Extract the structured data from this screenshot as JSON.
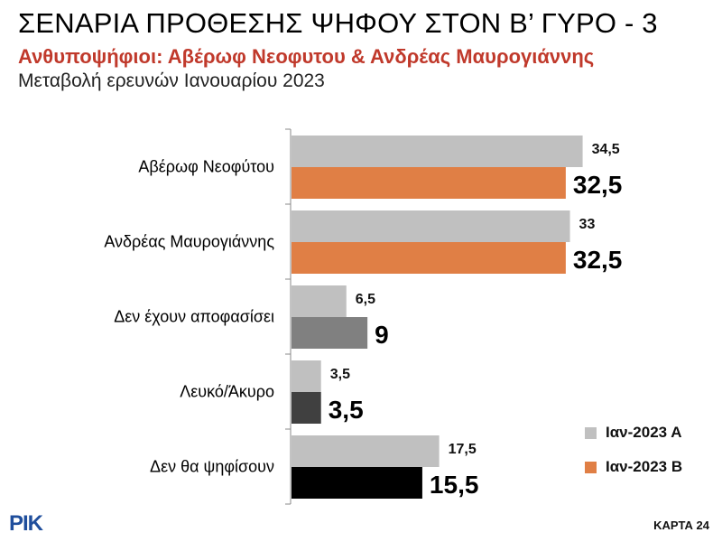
{
  "header": {
    "title": "ΣΕΝΑΡΙΑ ΠΡΟΘΕΣΗΣ ΨΗΦΟΥ ΣΤΟΝ Β’ ΓΥΡΟ - 3",
    "subtitle": "Ανθυποψήφιοι: Αβέρωφ Νεοφυτου & Ανδρέας Μαυρογιάννης",
    "subtitle2": "Μεταβολή ερευνών Ιανουαρίου 2023"
  },
  "colors": {
    "series_a": "#c0c0c0",
    "series_b": "#e07f45",
    "undecided_b": "#808080",
    "blank_b": "#404040",
    "abstain_b": "#000000",
    "subtitle": "#c0392b"
  },
  "chart_data": {
    "type": "bar",
    "orientation": "horizontal",
    "categories": [
      "Αβέρωφ Νεοφύτου",
      "Ανδρέας Μαυρογιάννης",
      "Δεν έχουν αποφασίσει",
      "Λευκό/Άκυρο",
      "Δεν θα ψηφίσουν"
    ],
    "series": [
      {
        "name": "Ιαν-2023 Α",
        "values": [
          34.5,
          33,
          6.5,
          3.5,
          17.5
        ],
        "labels": [
          "34,5",
          "33",
          "6,5",
          "3,5",
          "17,5"
        ]
      },
      {
        "name": "Ιαν-2023 Β",
        "values": [
          32.5,
          32.5,
          9,
          3.5,
          15.5
        ],
        "labels": [
          "32,5",
          "32,5",
          "9",
          "3,5",
          "15,5"
        ]
      }
    ],
    "xlim": [
      0,
      40
    ],
    "legend": "bottom-right",
    "grid": false
  },
  "footer": {
    "logo": "ΡΙΚ",
    "map_id": "ΚΑΡΤΑ 24"
  }
}
